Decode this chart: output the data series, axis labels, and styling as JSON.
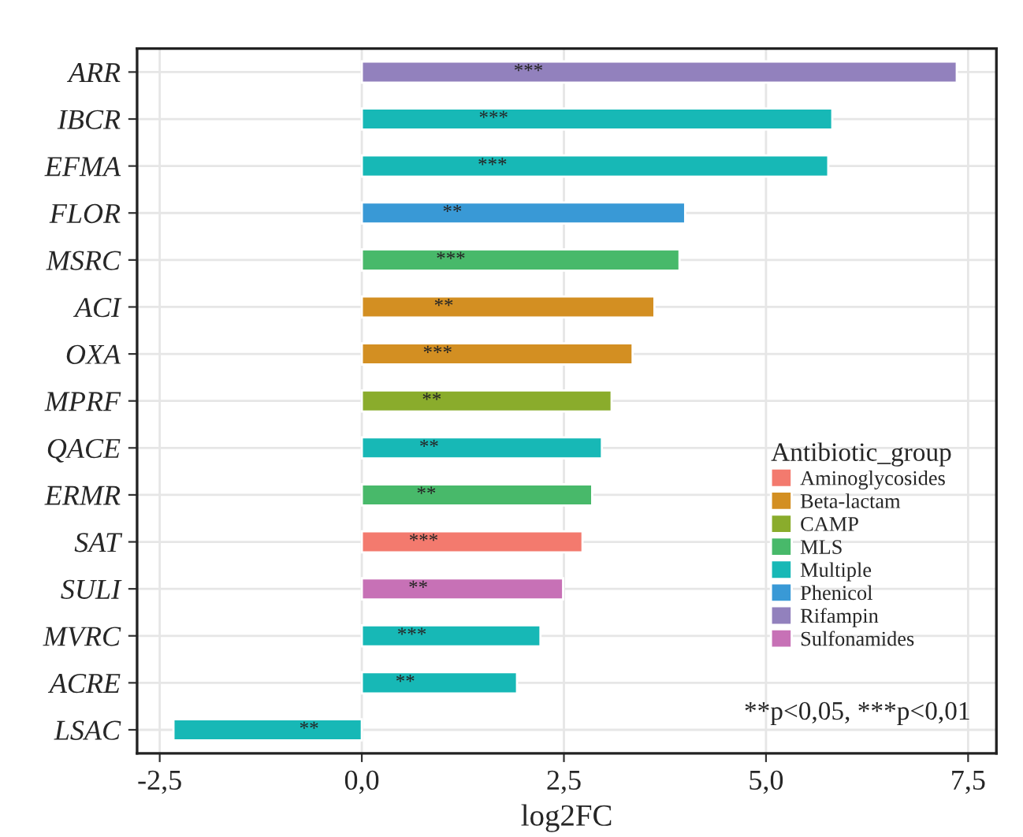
{
  "chart_data": {
    "type": "bar",
    "orientation": "horizontal",
    "xlabel": "log2FC",
    "legend_title": "Antibiotic_group",
    "legend": "bottom right",
    "grid": true,
    "categories": [
      "ARR",
      "IBCR",
      "EFMA",
      "FLOR",
      "MSRC",
      "ACI",
      "OXA",
      "MPRF",
      "QACE",
      "ERMR",
      "SAT",
      "SULI",
      "MVRC",
      "ACRE",
      "LSAC"
    ],
    "series": [
      {
        "name": "Aminoglycosides",
        "color": "#f37a6e",
        "values": [
          null,
          null,
          null,
          null,
          null,
          null,
          null,
          null,
          null,
          null,
          2.73,
          null,
          null,
          null,
          null
        ],
        "value_labels": [
          null,
          null,
          null,
          null,
          null,
          null,
          null,
          null,
          null,
          null,
          "***",
          null,
          null,
          null,
          null
        ]
      },
      {
        "name": "Beta-lactam",
        "color": "#d38f22",
        "values": [
          null,
          null,
          null,
          null,
          null,
          3.62,
          3.35,
          null,
          null,
          null,
          null,
          null,
          null,
          null,
          null
        ],
        "value_labels": [
          null,
          null,
          null,
          null,
          null,
          "**",
          "***",
          null,
          null,
          null,
          null,
          null,
          null,
          null,
          null
        ]
      },
      {
        "name": "CAMP",
        "color": "#8aac2c",
        "values": [
          null,
          null,
          null,
          null,
          null,
          null,
          null,
          3.09,
          null,
          null,
          null,
          null,
          null,
          null,
          null
        ],
        "value_labels": [
          null,
          null,
          null,
          null,
          null,
          null,
          null,
          "**",
          null,
          null,
          null,
          null,
          null,
          null,
          null
        ]
      },
      {
        "name": "MLS",
        "color": "#48b96a",
        "values": [
          null,
          null,
          null,
          null,
          3.93,
          null,
          null,
          null,
          null,
          2.85,
          null,
          null,
          null,
          null,
          null
        ],
        "value_labels": [
          null,
          null,
          null,
          null,
          "***",
          null,
          null,
          null,
          null,
          "**",
          null,
          null,
          null,
          null,
          null
        ]
      },
      {
        "name": "Multiple",
        "color": "#17b8b6",
        "values": [
          null,
          5.82,
          5.77,
          null,
          null,
          null,
          null,
          null,
          2.97,
          null,
          null,
          null,
          2.21,
          1.92,
          -2.33
        ],
        "value_labels": [
          null,
          "***",
          "***",
          null,
          null,
          null,
          null,
          null,
          "**",
          null,
          null,
          null,
          "***",
          "**",
          "**"
        ]
      },
      {
        "name": "Phenicol",
        "color": "#3999d6",
        "values": [
          null,
          null,
          null,
          4.0,
          null,
          null,
          null,
          null,
          null,
          null,
          null,
          null,
          null,
          null,
          null
        ],
        "value_labels": [
          null,
          null,
          null,
          "**",
          null,
          null,
          null,
          null,
          null,
          null,
          null,
          null,
          null,
          null,
          null
        ]
      },
      {
        "name": "Rifampin",
        "color": "#9281bd",
        "values": [
          7.36,
          null,
          null,
          null,
          null,
          null,
          null,
          null,
          null,
          null,
          null,
          null,
          null,
          null,
          null
        ],
        "value_labels": [
          "***",
          null,
          null,
          null,
          null,
          null,
          null,
          null,
          null,
          null,
          null,
          null,
          null,
          null,
          null
        ]
      },
      {
        "name": "Sulfonamides",
        "color": "#c771b6",
        "values": [
          null,
          null,
          null,
          null,
          null,
          null,
          null,
          null,
          null,
          null,
          null,
          2.49,
          null,
          null,
          null
        ],
        "value_labels": [
          null,
          null,
          null,
          null,
          null,
          null,
          null,
          null,
          null,
          null,
          null,
          "**",
          null,
          null,
          null
        ]
      }
    ],
    "xlim": [
      -2.78,
      7.85
    ],
    "xticks": [
      {
        "value": -2.5,
        "label": "-2,5"
      },
      {
        "value": 0,
        "label": "0,0"
      },
      {
        "value": 2.5,
        "label": "2,5"
      },
      {
        "value": 5,
        "label": "5,0"
      },
      {
        "value": 7.5,
        "label": "7,5"
      }
    ],
    "annotations": [
      "**p<0,05, ***p<0,01"
    ]
  }
}
